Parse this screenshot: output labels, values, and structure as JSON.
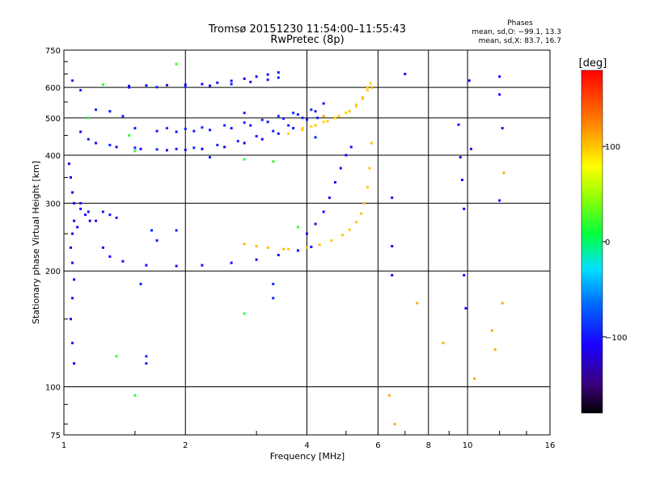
{
  "chart_data": {
    "type": "scatter",
    "title": "Tromsø 20151230 11:54:00–11:55:43",
    "subtitle": "RwPretec (8p)",
    "xlabel": "Frequency [MHz]",
    "ylabel": "Stationary phase Virtual Height [km]",
    "x_scale": "log",
    "y_scale": "log",
    "xlim": [
      1,
      16
    ],
    "ylim": [
      75,
      750
    ],
    "x_ticks": [
      "1",
      "2",
      "4",
      "6",
      "8",
      "10",
      "16"
    ],
    "y_ticks": [
      "75",
      "100",
      "200",
      "300",
      "400",
      "500",
      "600",
      "750"
    ],
    "grid": true,
    "phase_stats": {
      "title": "Phases",
      "line_o": "mean, sd,O: −99.1, 13.3",
      "line_x": "mean, sd,X:  83.7, 16.7"
    },
    "colorbar": {
      "label": "[deg]",
      "ticks": [
        "100",
        "0",
        "−100"
      ],
      "tick_values": [
        100,
        0,
        -100
      ],
      "range": [
        -180,
        180
      ],
      "colormap": "rainbow"
    },
    "traces": [
      {
        "name": "",
        "phase": -105,
        "points": [
          [
            1.45,
            605
          ],
          [
            1.6,
            607
          ],
          [
            1.8,
            608
          ],
          [
            2.0,
            610
          ],
          [
            2.2,
            612
          ],
          [
            2.4,
            617
          ],
          [
            2.6,
            624
          ],
          [
            2.8,
            632
          ],
          [
            3.0,
            640
          ],
          [
            3.2,
            648
          ],
          [
            3.4,
            656
          ]
        ]
      },
      {
        "name": "",
        "phase": -100,
        "points": [
          [
            1.45,
            600
          ],
          [
            1.7,
            601
          ],
          [
            2.0,
            603
          ],
          [
            2.3,
            606
          ],
          [
            2.6,
            612
          ],
          [
            2.9,
            620
          ],
          [
            3.2,
            628
          ],
          [
            3.4,
            636
          ]
        ]
      },
      {
        "name": "",
        "phase": -105,
        "points": [
          [
            1.1,
            460
          ],
          [
            1.2,
            430
          ],
          [
            1.35,
            420
          ],
          [
            1.55,
            415
          ],
          [
            1.8,
            412
          ],
          [
            2.0,
            413
          ],
          [
            2.2,
            415
          ],
          [
            2.5,
            420
          ],
          [
            2.8,
            430
          ],
          [
            3.1,
            440
          ],
          [
            3.4,
            455
          ],
          [
            3.7,
            470
          ],
          [
            4.0,
            495
          ],
          [
            4.2,
            520
          ],
          [
            4.4,
            545
          ]
        ]
      },
      {
        "name": "",
        "phase": -95,
        "points": [
          [
            1.15,
            440
          ],
          [
            1.3,
            425
          ],
          [
            1.5,
            418
          ],
          [
            1.7,
            414
          ],
          [
            1.9,
            415
          ],
          [
            2.1,
            418
          ],
          [
            2.4,
            425
          ],
          [
            2.7,
            435
          ],
          [
            3.0,
            448
          ],
          [
            3.3,
            462
          ],
          [
            3.6,
            478
          ],
          [
            3.9,
            500
          ],
          [
            4.1,
            525
          ]
        ]
      },
      {
        "name": "",
        "phase": -100,
        "points": [
          [
            1.5,
            470
          ],
          [
            1.7,
            462
          ],
          [
            1.9,
            460
          ],
          [
            2.1,
            462
          ],
          [
            2.3,
            465
          ],
          [
            2.6,
            470
          ],
          [
            2.9,
            478
          ],
          [
            3.2,
            488
          ],
          [
            3.5,
            498
          ],
          [
            3.8,
            510
          ]
        ]
      },
      {
        "name": "",
        "phase": -90,
        "points": [
          [
            1.8,
            470
          ],
          [
            2.0,
            468
          ],
          [
            2.2,
            472
          ],
          [
            2.5,
            478
          ],
          [
            2.8,
            486
          ],
          [
            3.1,
            494
          ],
          [
            3.4,
            505
          ],
          [
            3.7,
            515
          ]
        ]
      },
      {
        "name": "",
        "phase": 95,
        "points": [
          [
            3.6,
            455
          ],
          [
            3.9,
            465
          ],
          [
            4.1,
            475
          ],
          [
            4.4,
            488
          ],
          [
            4.7,
            500
          ],
          [
            5.0,
            515
          ],
          [
            5.3,
            535
          ],
          [
            5.5,
            560
          ],
          [
            5.65,
            590
          ],
          [
            5.75,
            615
          ]
        ]
      },
      {
        "name": "",
        "phase": 100,
        "points": [
          [
            3.9,
            470
          ],
          [
            4.2,
            478
          ],
          [
            4.5,
            490
          ],
          [
            4.8,
            505
          ],
          [
            5.1,
            520
          ],
          [
            5.3,
            540
          ],
          [
            5.5,
            565
          ],
          [
            5.65,
            600
          ]
        ]
      },
      {
        "name": "",
        "phase": -105,
        "points": [
          [
            1.25,
            230
          ],
          [
            1.3,
            218
          ],
          [
            1.4,
            212
          ],
          [
            1.6,
            207
          ],
          [
            1.9,
            206
          ],
          [
            2.2,
            207
          ],
          [
            2.6,
            210
          ],
          [
            3.0,
            214
          ],
          [
            3.4,
            220
          ],
          [
            3.8,
            226
          ],
          [
            4.1,
            231
          ]
        ]
      },
      {
        "name": "",
        "phase": 100,
        "points": [
          [
            3.6,
            228
          ],
          [
            4.0,
            230
          ],
          [
            4.3,
            234
          ],
          [
            4.6,
            240
          ],
          [
            4.9,
            248
          ],
          [
            5.1,
            256
          ],
          [
            5.3,
            268
          ],
          [
            5.45,
            282
          ],
          [
            5.55,
            300
          ],
          [
            5.65,
            330
          ],
          [
            5.72,
            370
          ],
          [
            5.78,
            430
          ]
        ]
      },
      {
        "name": "",
        "phase": 105,
        "points": [
          [
            2.8,
            235
          ],
          [
            3.0,
            232
          ],
          [
            3.2,
            230
          ],
          [
            3.5,
            228
          ]
        ]
      },
      {
        "name": "",
        "phase": -105,
        "points": [
          [
            4.0,
            250
          ],
          [
            4.2,
            265
          ],
          [
            4.4,
            285
          ],
          [
            4.55,
            310
          ],
          [
            4.7,
            340
          ],
          [
            4.85,
            370
          ],
          [
            5.0,
            400
          ],
          [
            5.15,
            420
          ]
        ]
      },
      {
        "name": "",
        "phase": -110,
        "points": [
          [
            1.03,
            380
          ],
          [
            1.04,
            350
          ],
          [
            1.05,
            320
          ],
          [
            1.06,
            300
          ],
          [
            1.06,
            270
          ],
          [
            1.05,
            250
          ],
          [
            1.04,
            230
          ],
          [
            1.05,
            210
          ],
          [
            1.06,
            190
          ],
          [
            1.05,
            170
          ],
          [
            1.04,
            150
          ],
          [
            1.05,
            130
          ],
          [
            1.06,
            115
          ],
          [
            1.08,
            260
          ],
          [
            1.1,
            290
          ],
          [
            1.13,
            280
          ],
          [
            1.16,
            270
          ]
        ]
      },
      {
        "name": "",
        "phase": -100,
        "points": [
          [
            1.1,
            300
          ],
          [
            1.15,
            285
          ],
          [
            1.2,
            270
          ],
          [
            1.25,
            285
          ],
          [
            1.3,
            280
          ],
          [
            1.35,
            275
          ]
        ]
      },
      {
        "name": "",
        "phase": -105,
        "points": [
          [
            6.5,
            195
          ],
          [
            6.5,
            232
          ],
          [
            6.5,
            310
          ],
          [
            7.0,
            650
          ],
          [
            9.5,
            480
          ],
          [
            9.6,
            395
          ],
          [
            9.7,
            345
          ],
          [
            9.8,
            290
          ],
          [
            9.8,
            195
          ],
          [
            9.9,
            160
          ],
          [
            10.1,
            625
          ],
          [
            10.2,
            415
          ],
          [
            12.0,
            640
          ],
          [
            12.0,
            575
          ],
          [
            12.0,
            305
          ],
          [
            12.2,
            470
          ]
        ]
      },
      {
        "name": "",
        "phase": 110,
        "points": [
          [
            6.4,
            95
          ],
          [
            6.6,
            80
          ],
          [
            7.5,
            165
          ],
          [
            8.7,
            130
          ],
          [
            10.4,
            105
          ],
          [
            11.5,
            140
          ],
          [
            11.7,
            125
          ],
          [
            12.2,
            165
          ],
          [
            12.3,
            360
          ],
          [
            5.8,
            600
          ],
          [
            4.4,
            505
          ]
        ]
      },
      {
        "name": "",
        "phase": 20,
        "points": [
          [
            1.25,
            610
          ],
          [
            1.3,
            520
          ],
          [
            1.45,
            450
          ],
          [
            1.5,
            410
          ],
          [
            1.15,
            500
          ],
          [
            1.9,
            690
          ],
          [
            2.8,
            390
          ],
          [
            3.3,
            385
          ],
          [
            3.8,
            260
          ],
          [
            2.8,
            155
          ],
          [
            1.5,
            95
          ],
          [
            1.35,
            120
          ]
        ]
      },
      {
        "name": "",
        "phase": -95,
        "points": [
          [
            1.05,
            625
          ],
          [
            1.1,
            590
          ],
          [
            1.2,
            525
          ],
          [
            1.3,
            520
          ],
          [
            1.4,
            505
          ],
          [
            1.55,
            185
          ],
          [
            1.6,
            115
          ],
          [
            1.6,
            120
          ],
          [
            1.65,
            255
          ],
          [
            1.7,
            240
          ],
          [
            1.9,
            255
          ],
          [
            2.3,
            395
          ],
          [
            2.8,
            515
          ],
          [
            3.3,
            170
          ],
          [
            3.3,
            185
          ],
          [
            4.2,
            445
          ],
          [
            4.25,
            500
          ]
        ]
      }
    ]
  }
}
